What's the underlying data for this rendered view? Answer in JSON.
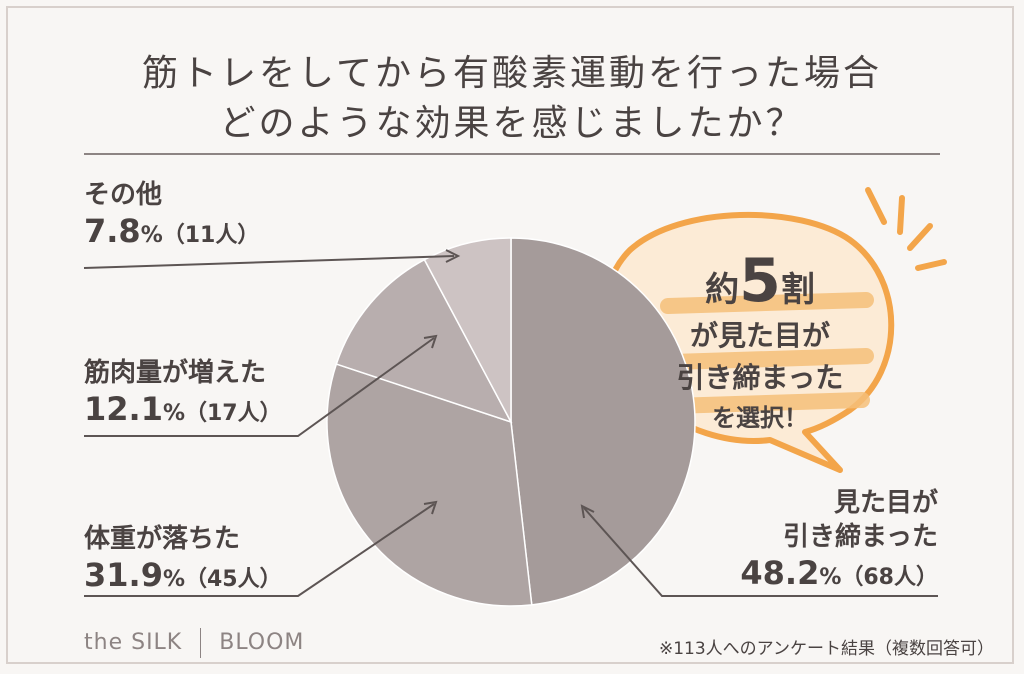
{
  "title": {
    "line1": "筋トレをしてから有酸素運動を行った場合",
    "line2": "どのような効果を感じましたか？"
  },
  "chart_data": {
    "type": "pie",
    "slices": [
      {
        "name_lines": [
          "見た目が",
          "引き締まった"
        ],
        "value": 48.2,
        "percent_label": "48.2",
        "count_label": "（68人）",
        "color": "#a59b9a"
      },
      {
        "name_lines": [
          "体重が落ちた"
        ],
        "value": 31.9,
        "percent_label": "31.9",
        "count_label": "（45人）",
        "color": "#aea4a3"
      },
      {
        "name_lines": [
          "筋肉量が増えた"
        ],
        "value": 12.1,
        "percent_label": "12.1",
        "count_label": "（17人）",
        "color": "#b8aeae"
      },
      {
        "name_lines": [
          "その他"
        ],
        "value": 7.8,
        "percent_label": "7.8",
        "count_label": "（11人）",
        "color": "#cdc3c3"
      }
    ],
    "percent_sign": "%"
  },
  "callout": {
    "prefix": "約",
    "number": "5",
    "suffix": "割",
    "lines": [
      "が見た目が",
      "引き締まった",
      "を選択！"
    ],
    "accent_color": "#f3a54a",
    "fill_color": "#fcebd6"
  },
  "brand": {
    "left": "the SILK",
    "right": "BLOOM"
  },
  "note": "※113人へのアンケート結果（複数回答可）"
}
